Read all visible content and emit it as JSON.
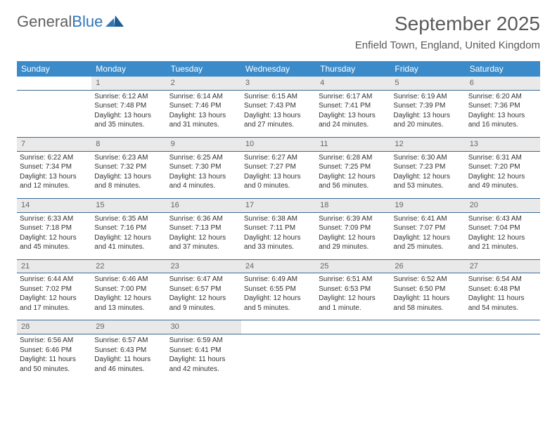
{
  "logo": {
    "word1": "General",
    "word2": "Blue"
  },
  "title": "September 2025",
  "location": "Enfield Town, England, United Kingdom",
  "colors": {
    "header_bg": "#3b8bca",
    "header_text": "#ffffff",
    "daynum_bg": "#e9e9e9",
    "daynum_text": "#666666",
    "rule": "#3b6a94",
    "body_text": "#333333",
    "logo_gray": "#606060",
    "logo_blue": "#2f76b8"
  },
  "weekdays": [
    "Sunday",
    "Monday",
    "Tuesday",
    "Wednesday",
    "Thursday",
    "Friday",
    "Saturday"
  ],
  "weeks": [
    [
      null,
      {
        "n": "1",
        "sr": "Sunrise: 6:12 AM",
        "ss": "Sunset: 7:48 PM",
        "d1": "Daylight: 13 hours",
        "d2": "and 35 minutes."
      },
      {
        "n": "2",
        "sr": "Sunrise: 6:14 AM",
        "ss": "Sunset: 7:46 PM",
        "d1": "Daylight: 13 hours",
        "d2": "and 31 minutes."
      },
      {
        "n": "3",
        "sr": "Sunrise: 6:15 AM",
        "ss": "Sunset: 7:43 PM",
        "d1": "Daylight: 13 hours",
        "d2": "and 27 minutes."
      },
      {
        "n": "4",
        "sr": "Sunrise: 6:17 AM",
        "ss": "Sunset: 7:41 PM",
        "d1": "Daylight: 13 hours",
        "d2": "and 24 minutes."
      },
      {
        "n": "5",
        "sr": "Sunrise: 6:19 AM",
        "ss": "Sunset: 7:39 PM",
        "d1": "Daylight: 13 hours",
        "d2": "and 20 minutes."
      },
      {
        "n": "6",
        "sr": "Sunrise: 6:20 AM",
        "ss": "Sunset: 7:36 PM",
        "d1": "Daylight: 13 hours",
        "d2": "and 16 minutes."
      }
    ],
    [
      {
        "n": "7",
        "sr": "Sunrise: 6:22 AM",
        "ss": "Sunset: 7:34 PM",
        "d1": "Daylight: 13 hours",
        "d2": "and 12 minutes."
      },
      {
        "n": "8",
        "sr": "Sunrise: 6:23 AM",
        "ss": "Sunset: 7:32 PM",
        "d1": "Daylight: 13 hours",
        "d2": "and 8 minutes."
      },
      {
        "n": "9",
        "sr": "Sunrise: 6:25 AM",
        "ss": "Sunset: 7:30 PM",
        "d1": "Daylight: 13 hours",
        "d2": "and 4 minutes."
      },
      {
        "n": "10",
        "sr": "Sunrise: 6:27 AM",
        "ss": "Sunset: 7:27 PM",
        "d1": "Daylight: 13 hours",
        "d2": "and 0 minutes."
      },
      {
        "n": "11",
        "sr": "Sunrise: 6:28 AM",
        "ss": "Sunset: 7:25 PM",
        "d1": "Daylight: 12 hours",
        "d2": "and 56 minutes."
      },
      {
        "n": "12",
        "sr": "Sunrise: 6:30 AM",
        "ss": "Sunset: 7:23 PM",
        "d1": "Daylight: 12 hours",
        "d2": "and 53 minutes."
      },
      {
        "n": "13",
        "sr": "Sunrise: 6:31 AM",
        "ss": "Sunset: 7:20 PM",
        "d1": "Daylight: 12 hours",
        "d2": "and 49 minutes."
      }
    ],
    [
      {
        "n": "14",
        "sr": "Sunrise: 6:33 AM",
        "ss": "Sunset: 7:18 PM",
        "d1": "Daylight: 12 hours",
        "d2": "and 45 minutes."
      },
      {
        "n": "15",
        "sr": "Sunrise: 6:35 AM",
        "ss": "Sunset: 7:16 PM",
        "d1": "Daylight: 12 hours",
        "d2": "and 41 minutes."
      },
      {
        "n": "16",
        "sr": "Sunrise: 6:36 AM",
        "ss": "Sunset: 7:13 PM",
        "d1": "Daylight: 12 hours",
        "d2": "and 37 minutes."
      },
      {
        "n": "17",
        "sr": "Sunrise: 6:38 AM",
        "ss": "Sunset: 7:11 PM",
        "d1": "Daylight: 12 hours",
        "d2": "and 33 minutes."
      },
      {
        "n": "18",
        "sr": "Sunrise: 6:39 AM",
        "ss": "Sunset: 7:09 PM",
        "d1": "Daylight: 12 hours",
        "d2": "and 29 minutes."
      },
      {
        "n": "19",
        "sr": "Sunrise: 6:41 AM",
        "ss": "Sunset: 7:07 PM",
        "d1": "Daylight: 12 hours",
        "d2": "and 25 minutes."
      },
      {
        "n": "20",
        "sr": "Sunrise: 6:43 AM",
        "ss": "Sunset: 7:04 PM",
        "d1": "Daylight: 12 hours",
        "d2": "and 21 minutes."
      }
    ],
    [
      {
        "n": "21",
        "sr": "Sunrise: 6:44 AM",
        "ss": "Sunset: 7:02 PM",
        "d1": "Daylight: 12 hours",
        "d2": "and 17 minutes."
      },
      {
        "n": "22",
        "sr": "Sunrise: 6:46 AM",
        "ss": "Sunset: 7:00 PM",
        "d1": "Daylight: 12 hours",
        "d2": "and 13 minutes."
      },
      {
        "n": "23",
        "sr": "Sunrise: 6:47 AM",
        "ss": "Sunset: 6:57 PM",
        "d1": "Daylight: 12 hours",
        "d2": "and 9 minutes."
      },
      {
        "n": "24",
        "sr": "Sunrise: 6:49 AM",
        "ss": "Sunset: 6:55 PM",
        "d1": "Daylight: 12 hours",
        "d2": "and 5 minutes."
      },
      {
        "n": "25",
        "sr": "Sunrise: 6:51 AM",
        "ss": "Sunset: 6:53 PM",
        "d1": "Daylight: 12 hours",
        "d2": "and 1 minute."
      },
      {
        "n": "26",
        "sr": "Sunrise: 6:52 AM",
        "ss": "Sunset: 6:50 PM",
        "d1": "Daylight: 11 hours",
        "d2": "and 58 minutes."
      },
      {
        "n": "27",
        "sr": "Sunrise: 6:54 AM",
        "ss": "Sunset: 6:48 PM",
        "d1": "Daylight: 11 hours",
        "d2": "and 54 minutes."
      }
    ],
    [
      {
        "n": "28",
        "sr": "Sunrise: 6:56 AM",
        "ss": "Sunset: 6:46 PM",
        "d1": "Daylight: 11 hours",
        "d2": "and 50 minutes."
      },
      {
        "n": "29",
        "sr": "Sunrise: 6:57 AM",
        "ss": "Sunset: 6:43 PM",
        "d1": "Daylight: 11 hours",
        "d2": "and 46 minutes."
      },
      {
        "n": "30",
        "sr": "Sunrise: 6:59 AM",
        "ss": "Sunset: 6:41 PM",
        "d1": "Daylight: 11 hours",
        "d2": "and 42 minutes."
      },
      null,
      null,
      null,
      null
    ]
  ]
}
